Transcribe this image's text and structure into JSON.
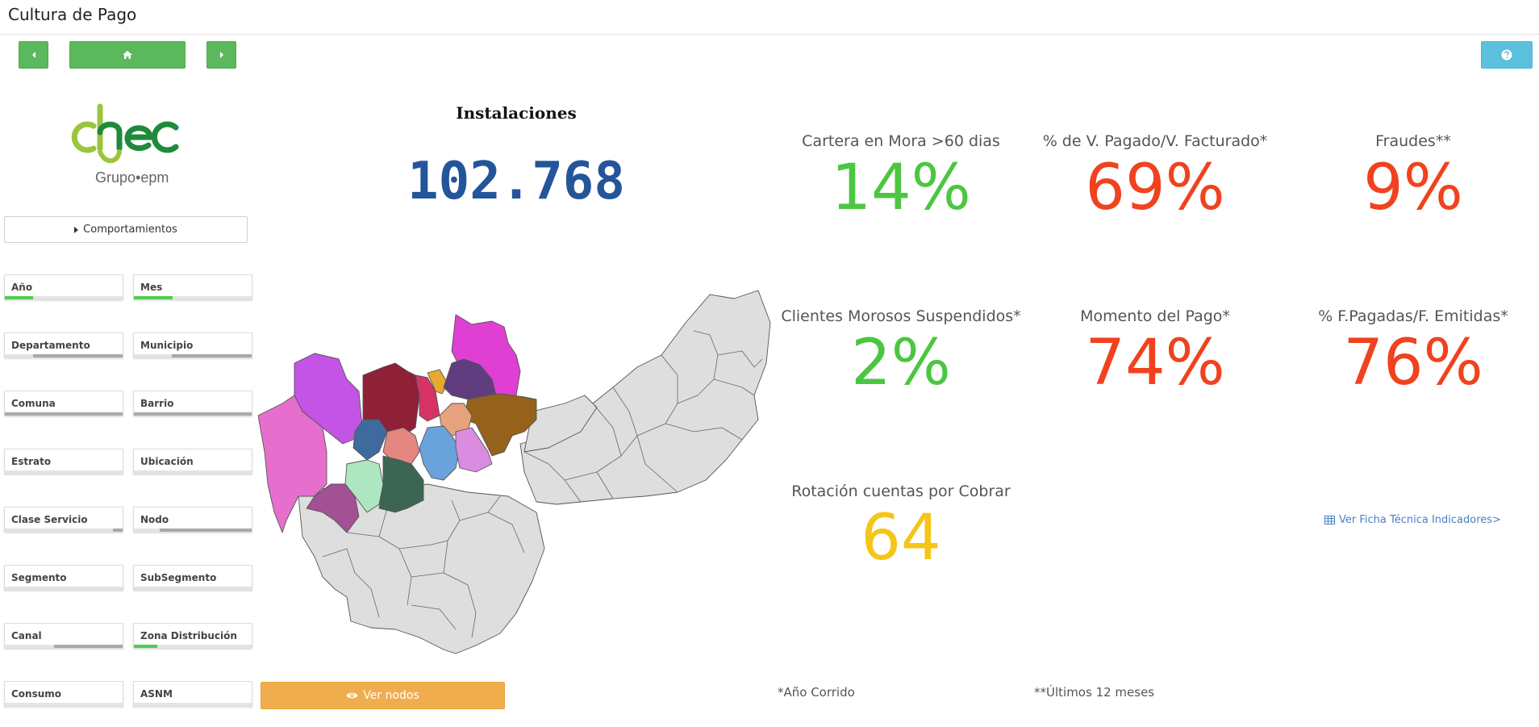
{
  "app": {
    "title": "Cultura de Pago"
  },
  "toolbar": {
    "back_icon": "caret-left-icon",
    "home_icon": "home-icon",
    "forward_icon": "caret-right-icon",
    "help_icon": "question-circle-icon",
    "nav_color": "#5cb85c",
    "help_color": "#5bc0de"
  },
  "logo": {
    "brand": "chec",
    "sub": "Grupo•epm"
  },
  "comportamientos_button": {
    "label": "Comportamientos"
  },
  "filters": [
    {
      "label": "Año"
    },
    {
      "label": "Mes"
    },
    {
      "label": "Departamento"
    },
    {
      "label": "Municipio"
    },
    {
      "label": "Comuna"
    },
    {
      "label": "Barrio"
    },
    {
      "label": "Estrato"
    },
    {
      "label": "Ubicación"
    },
    {
      "label": "Clase Servicio"
    },
    {
      "label": "Nodo"
    },
    {
      "label": "Segmento"
    },
    {
      "label": "SubSegmento"
    },
    {
      "label": "Canal"
    },
    {
      "label": "Zona Distribución"
    },
    {
      "label": "Consumo"
    },
    {
      "label": "ASNM"
    }
  ],
  "instalaciones": {
    "title": "Instalaciones",
    "value": "102.768"
  },
  "kpis": {
    "cartera": {
      "label": "Cartera en Mora >60 dias",
      "value": "14%",
      "color": "#4cc640"
    },
    "pagado": {
      "label": "% de V. Pagado/V. Facturado*",
      "value": "69%",
      "color": "#f0421e"
    },
    "fraudes": {
      "label": "Fraudes**",
      "value": "9%",
      "color": "#f0421e"
    },
    "suspendidos": {
      "label": "Clientes Morosos Suspendidos*",
      "value": "2%",
      "color": "#4cc640"
    },
    "momento": {
      "label": "Momento del Pago*",
      "value": "74%",
      "color": "#f0421e"
    },
    "fpagadas": {
      "label": "% F.Pagadas/F. Emitidas*",
      "value": "76%",
      "color": "#f0421e"
    },
    "rotacion": {
      "label": "Rotación cuentas por Cobrar",
      "value": "64",
      "color": "#f5c518"
    }
  },
  "ficha_link": {
    "label": "Ver Ficha Técnica Indicadores>",
    "icon": "table-icon"
  },
  "ver_nodos_button": {
    "label": "Ver nodos",
    "icon": "eye-icon",
    "color": "#f0ad4e"
  },
  "notes": {
    "anio": "*Año Corrido",
    "ultimos": "**Últimos 12 meses"
  },
  "map": {
    "highlight_colors": [
      "#c354e6",
      "#e66fcd",
      "#8e2038",
      "#d63266",
      "#e8a82e",
      "#e03fd4",
      "#603d7e",
      "#96611b",
      "#e7a27e",
      "#3f6a9e",
      "#e48781",
      "#6aa3db",
      "#d98ce0",
      "#aee6c1",
      "#3c6653",
      "#a45094"
    ],
    "base_color": "#dedede"
  }
}
